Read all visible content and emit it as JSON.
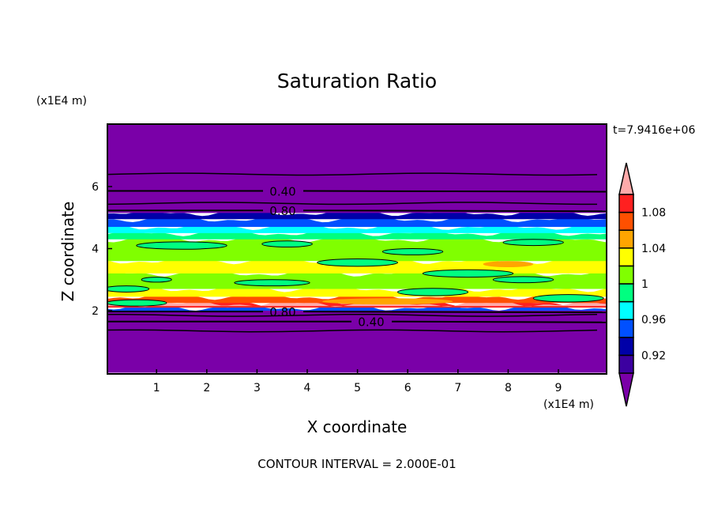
{
  "chart_data": {
    "type": "heatmap",
    "subtype": "filled-contour",
    "title": "Saturation Ratio",
    "xlabel": "X coordinate",
    "ylabel": "Z coordinate",
    "x_unit": "(x1E4 m)",
    "y_unit": "(x1E4 m)",
    "xlim": [
      0,
      10
    ],
    "ylim": [
      0,
      8
    ],
    "xticks": [
      "1",
      "2",
      "3",
      "4",
      "5",
      "6",
      "7",
      "8",
      "9"
    ],
    "yticks": [
      "2",
      "4",
      "6"
    ],
    "time_label": "t=7.9416e+06",
    "footer": "CONTOUR INTERVAL = 2.000E-01",
    "colorbar": {
      "levels": [
        0.9,
        0.92,
        0.94,
        0.96,
        0.98,
        1.0,
        1.02,
        1.04,
        1.06,
        1.08,
        1.1
      ],
      "colors": [
        "#7a00a8",
        "#3c00a0",
        "#0000a8",
        "#0050ff",
        "#00ffff",
        "#00ff80",
        "#80ff00",
        "#ffff00",
        "#ffa500",
        "#ff5000",
        "#ff2020",
        "#ffaaaa"
      ],
      "tick_labels": [
        "0.92",
        "0.96",
        "1",
        "1.04",
        "1.08"
      ]
    },
    "bands": [
      {
        "z0": 0,
        "z1": 2.0,
        "color": "#7a00a8"
      },
      {
        "z0": 2.0,
        "z1": 2.1,
        "color": "#0050ff"
      },
      {
        "z0": 2.1,
        "z1": 2.25,
        "color": "#ff2020"
      },
      {
        "z0": 2.15,
        "z1": 2.22,
        "color": "#ffaaaa"
      },
      {
        "z0": 2.25,
        "z1": 2.45,
        "color": "#ff5000"
      },
      {
        "z0": 2.45,
        "z1": 2.7,
        "color": "#ffff00"
      },
      {
        "z0": 2.7,
        "z1": 3.2,
        "color": "#80ff00"
      },
      {
        "z0": 3.2,
        "z1": 3.6,
        "color": "#ffff00"
      },
      {
        "z0": 3.6,
        "z1": 4.3,
        "color": "#80ff00"
      },
      {
        "z0": 4.3,
        "z1": 4.5,
        "color": "#00ff80"
      },
      {
        "z0": 4.5,
        "z1": 4.7,
        "color": "#00ffff"
      },
      {
        "z0": 4.7,
        "z1": 4.95,
        "color": "#0050ff"
      },
      {
        "z0": 4.95,
        "z1": 5.15,
        "color": "#0000a8"
      },
      {
        "z0": 5.15,
        "z1": 8,
        "color": "#7a00a8"
      }
    ],
    "islands": [
      {
        "x": 1.5,
        "z": 4.1,
        "w": 1.8,
        "h": 0.12,
        "color": "#00ff80"
      },
      {
        "x": 5.0,
        "z": 3.55,
        "w": 1.6,
        "h": 0.12,
        "color": "#00ff80"
      },
      {
        "x": 8.5,
        "z": 4.2,
        "w": 1.2,
        "h": 0.1,
        "color": "#00ff80"
      },
      {
        "x": 7.2,
        "z": 3.2,
        "w": 1.8,
        "h": 0.12,
        "color": "#00ff80"
      },
      {
        "x": 3.3,
        "z": 2.9,
        "w": 1.5,
        "h": 0.1,
        "color": "#00ff80"
      },
      {
        "x": 5.6,
        "z": 2.3,
        "w": 2.6,
        "h": 0.1,
        "color": "#ffa500"
      },
      {
        "x": 6.5,
        "z": 2.6,
        "w": 1.4,
        "h": 0.12,
        "color": "#00ff80"
      },
      {
        "x": 0.4,
        "z": 2.7,
        "w": 0.9,
        "h": 0.1,
        "color": "#00ff80"
      },
      {
        "x": 8.3,
        "z": 3.0,
        "w": 1.2,
        "h": 0.1,
        "color": "#00ff80"
      },
      {
        "x": 9.2,
        "z": 2.4,
        "w": 1.4,
        "h": 0.12,
        "color": "#00ff80"
      },
      {
        "x": 0.6,
        "z": 2.25,
        "w": 1.2,
        "h": 0.1,
        "color": "#00ff80"
      },
      {
        "x": 1.0,
        "z": 3.0,
        "w": 0.6,
        "h": 0.08,
        "color": "#00ff80"
      },
      {
        "x": 8.0,
        "z": 3.5,
        "w": 1.0,
        "h": 0.1,
        "color": "#ffa500"
      },
      {
        "x": 3.6,
        "z": 4.15,
        "w": 1.0,
        "h": 0.1,
        "color": "#00ff80"
      },
      {
        "x": 6.1,
        "z": 3.9,
        "w": 1.2,
        "h": 0.1,
        "color": "#00ff80"
      }
    ],
    "contours": [
      {
        "z": 6.4,
        "label": ""
      },
      {
        "z": 5.86,
        "label": "0.40"
      },
      {
        "z": 5.46,
        "label": ""
      },
      {
        "z": 5.23,
        "label": "0.80"
      },
      {
        "z": 1.97,
        "label": "0.80"
      },
      {
        "z": 1.85,
        "label": ""
      },
      {
        "z": 1.65,
        "label": "0.40"
      },
      {
        "z": 1.35,
        "label": ""
      }
    ]
  }
}
